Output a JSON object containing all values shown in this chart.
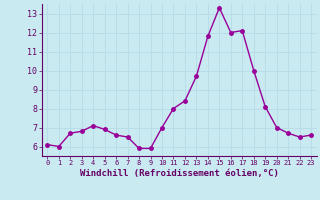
{
  "x": [
    0,
    1,
    2,
    3,
    4,
    5,
    6,
    7,
    8,
    9,
    10,
    11,
    12,
    13,
    14,
    15,
    16,
    17,
    18,
    19,
    20,
    21,
    22,
    23
  ],
  "y": [
    6.1,
    6.0,
    6.7,
    6.8,
    7.1,
    6.9,
    6.6,
    6.5,
    5.9,
    5.9,
    7.0,
    8.0,
    8.4,
    9.7,
    11.8,
    13.3,
    12.0,
    12.1,
    10.0,
    8.1,
    7.0,
    6.7,
    6.5,
    6.6
  ],
  "line_color": "#990099",
  "marker_color": "#990099",
  "bg_color": "#c8eaf0",
  "grid_color": "#aadddd",
  "xlabel": "Windchill (Refroidissement éolien,°C)",
  "xlabel_color": "#660066",
  "tick_color": "#660066",
  "ylim": [
    5.5,
    13.5
  ],
  "xlim": [
    -0.5,
    23.5
  ],
  "yticks": [
    6,
    7,
    8,
    9,
    10,
    11,
    12,
    13
  ],
  "xticks": [
    0,
    1,
    2,
    3,
    4,
    5,
    6,
    7,
    8,
    9,
    10,
    11,
    12,
    13,
    14,
    15,
    16,
    17,
    18,
    19,
    20,
    21,
    22,
    23
  ]
}
